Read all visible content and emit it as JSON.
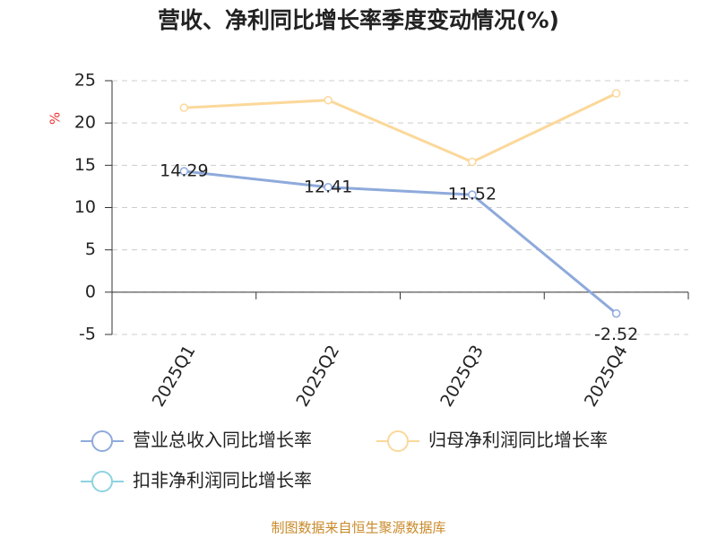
{
  "chart_data": {
    "type": "line",
    "title": "营收、净利同比增长率季度变动情况(%)",
    "y_label": "%",
    "categories": [
      "2025Q1",
      "2025Q2",
      "2025Q3",
      "2025Q4"
    ],
    "series": [
      {
        "name": "营业总收入同比增长率",
        "color": "#8eaadb",
        "values": [
          14.29,
          12.41,
          11.52,
          -2.52
        ],
        "data_labels": true
      },
      {
        "name": "归母净利润同比增长率",
        "color": "#fbd89a",
        "values": [
          21.8,
          22.7,
          15.4,
          23.5
        ],
        "data_labels": false
      },
      {
        "name": "扣非净利润同比增长率",
        "color": "#8dd3e0",
        "values": [
          null,
          null,
          null,
          null
        ],
        "data_labels": false
      }
    ],
    "ylim": [
      -5,
      25
    ],
    "yticks": [
      -5,
      0,
      5,
      10,
      15,
      20,
      25
    ],
    "grid": true,
    "source": "制图数据来自恒生聚源数据库"
  }
}
